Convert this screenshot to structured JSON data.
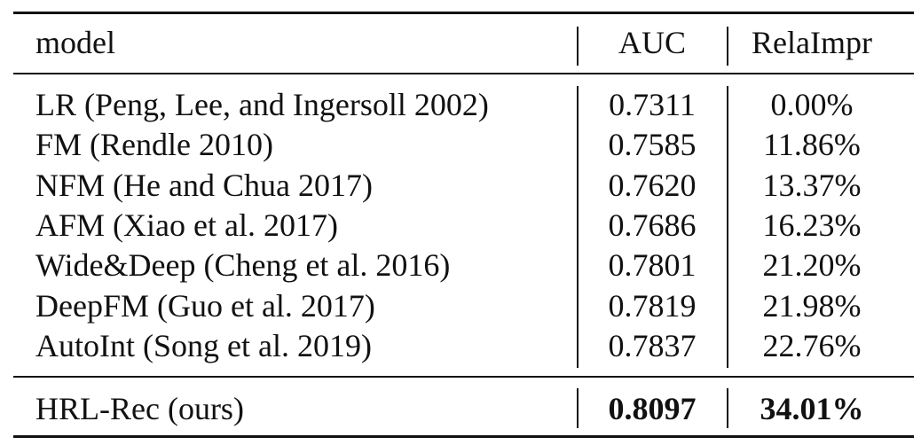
{
  "table": {
    "columns": [
      "model",
      "AUC",
      "RelaImpr"
    ],
    "rows": [
      [
        "LR (Peng, Lee, and Ingersoll 2002)",
        "0.7311",
        "0.00%"
      ],
      [
        "FM (Rendle 2010)",
        "0.7585",
        "11.86%"
      ],
      [
        "NFM (He and Chua 2017)",
        "0.7620",
        "13.37%"
      ],
      [
        "AFM (Xiao et al. 2017)",
        "0.7686",
        "16.23%"
      ],
      [
        "Wide&Deep (Cheng et al. 2016)",
        "0.7801",
        "21.20%"
      ],
      [
        "DeepFM (Guo et al. 2017)",
        "0.7819",
        "21.98%"
      ],
      [
        "AutoInt (Song et al. 2019)",
        "0.7837",
        "22.76%"
      ]
    ],
    "footer_row": [
      "HRL-Rec (ours)",
      "0.8097",
      "34.01%"
    ]
  }
}
